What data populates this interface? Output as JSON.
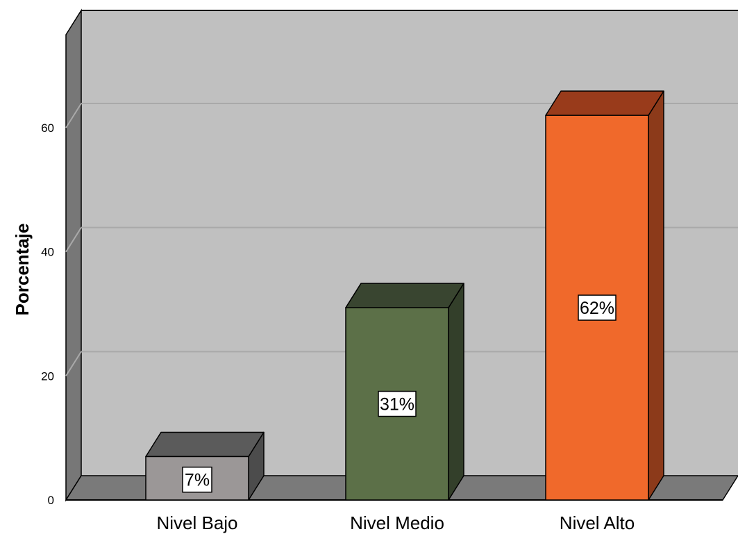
{
  "chart_data": {
    "type": "bar",
    "categories": [
      "Nivel Bajo",
      "Nivel Medio",
      "Nivel Alto"
    ],
    "values": [
      7,
      31,
      62
    ],
    "data_labels": [
      "7%",
      "31%",
      "62%"
    ],
    "ylabel": "Porcentaje",
    "xlabel": "",
    "ylim": [
      0,
      75
    ],
    "yticks": [
      0,
      20,
      40,
      60
    ],
    "ytick_labels": [
      "0",
      "20",
      "40",
      "60"
    ],
    "grid": true,
    "style": "3d",
    "colors": {
      "background": "#c0c0c0",
      "left_wall": "#777777",
      "floor": "#7a7a7a",
      "gridline": "#a9a9a9",
      "bars": [
        {
          "front": "#9b9797",
          "top": "#5b5b5b",
          "side": "#4c4c4c"
        },
        {
          "front": "#5c7048",
          "top": "#394530",
          "side": "#333f2a"
        },
        {
          "front": "#f0692b",
          "top": "#993b1b",
          "side": "#8c3a1a"
        }
      ]
    }
  }
}
